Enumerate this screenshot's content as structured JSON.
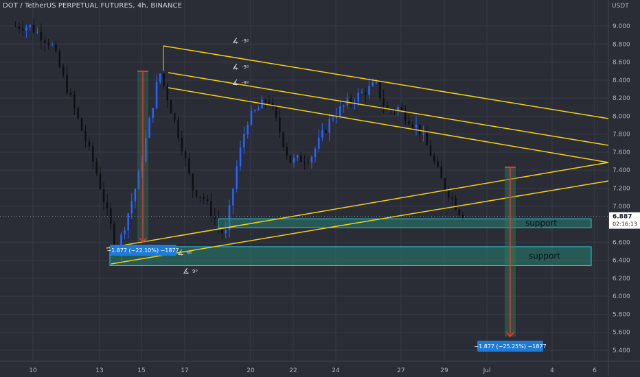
{
  "header": {
    "title": "DOT / TetherUS PERPETUAL FUTURES, 4h, BINANCE"
  },
  "price_axis": {
    "unit": "USDT",
    "ticks": [
      "9.000",
      "8.800",
      "8.600",
      "8.400",
      "8.200",
      "8.000",
      "7.800",
      "7.600",
      "7.400",
      "7.200",
      "7.000",
      "6.600",
      "6.400",
      "6.200",
      "6.000",
      "5.800",
      "5.600",
      "5.400"
    ],
    "current_price": "6.887",
    "countdown": "02:16:13"
  },
  "time_axis": {
    "labels": [
      "10",
      "13",
      "15",
      "17",
      "20",
      "22",
      "24",
      "27",
      "29",
      "Jul",
      "4",
      "6"
    ]
  },
  "annotations": {
    "support_upper": "support",
    "support_lower": "support",
    "measure_left": "−1.877 (−22.10%) −1877",
    "measure_right": "−1.877 (−25.25%) −1877",
    "angle_marks": [
      "-9º",
      "-9º",
      "-9º",
      "9º",
      "9º"
    ]
  },
  "colors": {
    "background": "#2b2d36",
    "grid": "#363a45",
    "candle_up": "#2962ff",
    "candle_down": "#0e0f14",
    "trendline": "#f5d017",
    "zone_fill": "#26806f",
    "zone_border": "#2ec7d6",
    "arrow_red": "#e53935",
    "arrow_green": "#2e7d5b",
    "label_blue": "#1e7bd8",
    "price_tag": "#ffffff"
  },
  "chart_data": {
    "type": "candlestick",
    "symbol": "DOT / TetherUS PERPETUAL FUTURES",
    "interval": "4h",
    "exchange": "BINANCE",
    "y_axis_unit": "USDT",
    "ylim": [
      5.3,
      9.2
    ],
    "last_price": 6.887,
    "anchors": [
      {
        "date": "Jun 10",
        "price": 9.0
      },
      {
        "date": "Jun 11",
        "price": 8.8
      },
      {
        "date": "Jun 12",
        "price": 8.1
      },
      {
        "date": "Jun 13",
        "price": 7.4
      },
      {
        "date": "Jun 14",
        "price": 6.5
      },
      {
        "date": "Jun 15",
        "price": 7.3
      },
      {
        "date": "Jun 16",
        "price": 8.5
      },
      {
        "date": "Jun 17",
        "price": 7.7
      },
      {
        "date": "Jun 17.5",
        "price": 7.2
      },
      {
        "date": "Jun 18",
        "price": 7.1
      },
      {
        "date": "Jun 19",
        "price": 6.65
      },
      {
        "date": "Jun 19.5",
        "price": 7.4
      },
      {
        "date": "Jun 20",
        "price": 7.95
      },
      {
        "date": "Jun 21",
        "price": 8.2
      },
      {
        "date": "Jun 22",
        "price": 7.5
      },
      {
        "date": "Jun 23",
        "price": 7.55
      },
      {
        "date": "Jun 24",
        "price": 8.0
      },
      {
        "date": "Jun 25",
        "price": 8.2
      },
      {
        "date": "Jun 26",
        "price": 8.35
      },
      {
        "date": "Jun 26.5",
        "price": 8.05
      },
      {
        "date": "Jun 27",
        "price": 8.1
      },
      {
        "date": "Jun 28",
        "price": 7.85
      },
      {
        "date": "Jun 28.5",
        "price": 7.6
      },
      {
        "date": "Jun 29",
        "price": 7.3
      },
      {
        "date": "Jun 30",
        "price": 6.89
      }
    ],
    "support_zones": [
      [
        6.76,
        6.86
      ],
      [
        6.34,
        6.55
      ]
    ],
    "measurements": [
      {
        "change": -1.877,
        "percent": -22.1
      },
      {
        "change": -1.877,
        "percent": -25.25
      }
    ]
  }
}
